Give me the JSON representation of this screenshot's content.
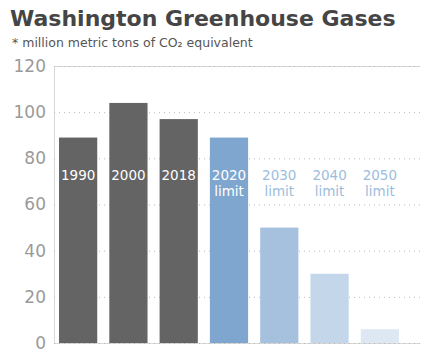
{
  "chart_data": {
    "type": "bar",
    "title": "Washington Greenhouse Gases",
    "subtitle": "* million metric tons of CO₂ equivalent",
    "categories": [
      "1990",
      "2000",
      "2018",
      "2020 limit",
      "2030 limit",
      "2040 limit",
      "2050 limit"
    ],
    "values": [
      89,
      104,
      97,
      89,
      50,
      30,
      6
    ],
    "colors": [
      "#646464",
      "#646464",
      "#646464",
      "#7ea6cf",
      "#a6c1de",
      "#c4d7ea",
      "#dde8f3"
    ],
    "ylim": [
      0,
      120
    ],
    "yticks": [
      0,
      20,
      40,
      60,
      80,
      100,
      120
    ],
    "grid": true,
    "tick_labels": "y"
  }
}
